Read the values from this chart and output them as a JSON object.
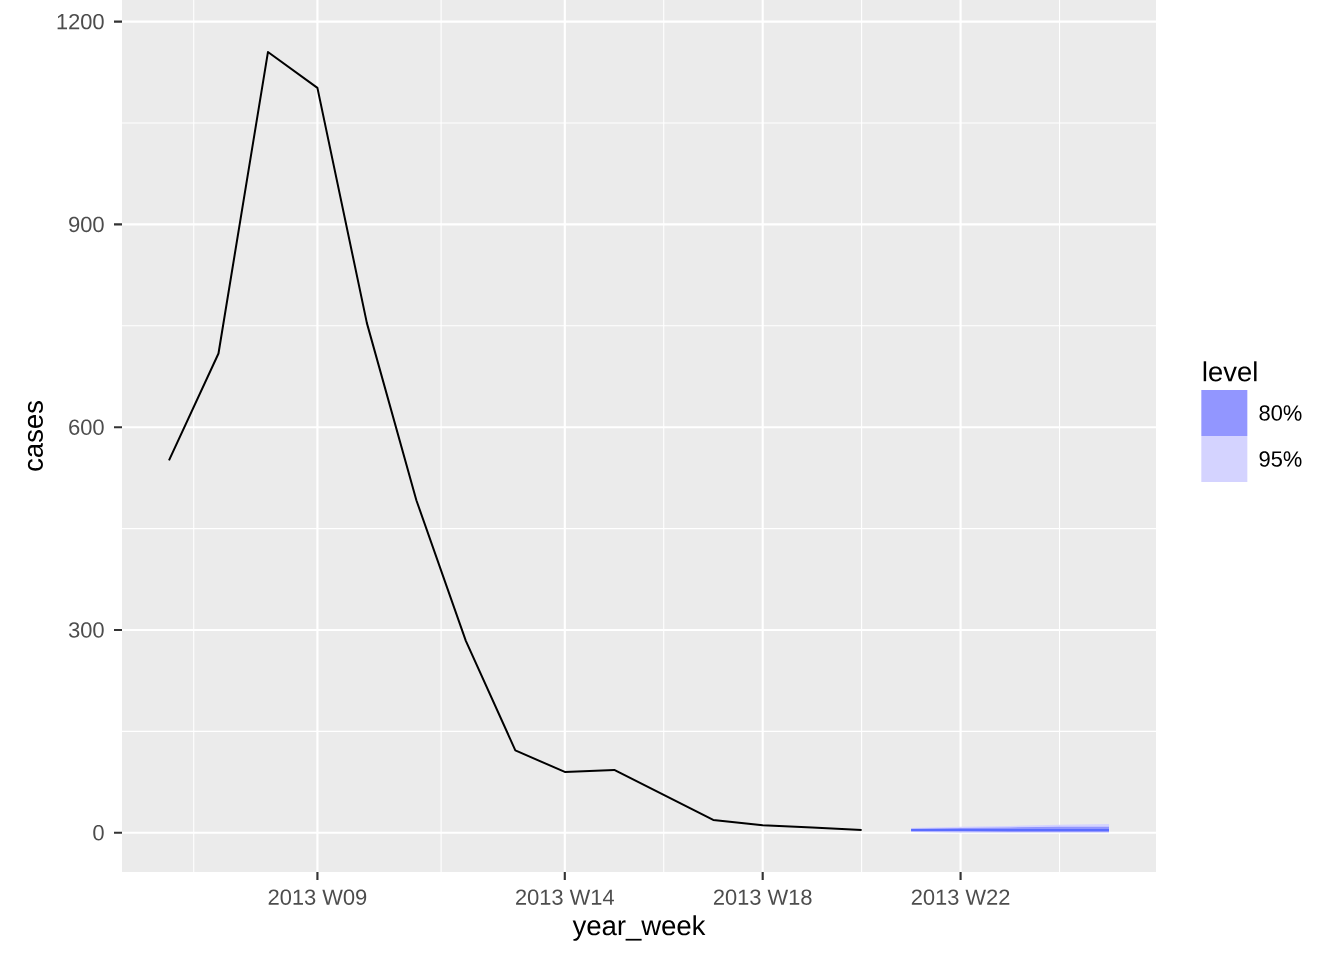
{
  "chart_data": {
    "type": "line",
    "xlabel": "year_week",
    "ylabel": "cases",
    "legend_title": "level",
    "legend": "right",
    "grid": true,
    "categories": [
      null,
      null,
      null,
      "2013 W09",
      null,
      null,
      null,
      null,
      "2013 W14",
      null,
      null,
      null,
      "2013 W18",
      null,
      null,
      null,
      "2013 W22",
      null,
      null,
      null
    ],
    "ylim": [
      -58,
      1232
    ],
    "yticks": [
      0,
      300,
      600,
      900,
      1200
    ],
    "series": [
      {
        "color": "#000000",
        "values": [
          551,
          709,
          1155,
          1102,
          754,
          492,
          284,
          122,
          90,
          93,
          56,
          19,
          11,
          8,
          4,
          null,
          null,
          null,
          null,
          null
        ]
      },
      {
        "name": "80%",
        "type": "area",
        "color": "#9296ff",
        "values": [
          null,
          null,
          null,
          null,
          null,
          null,
          null,
          null,
          null,
          null,
          null,
          null,
          null,
          null,
          null,
          null,
          null,
          null,
          null,
          null
        ],
        "lower": [
          null,
          null,
          null,
          null,
          null,
          null,
          null,
          null,
          null,
          null,
          null,
          null,
          null,
          null,
          null,
          2,
          2,
          1,
          1,
          1
        ],
        "upper": [
          null,
          null,
          null,
          null,
          null,
          null,
          null,
          null,
          null,
          null,
          null,
          null,
          null,
          null,
          null,
          6,
          7,
          8,
          9,
          9
        ]
      },
      {
        "name": "95%",
        "type": "area",
        "color": "#d4d3ff",
        "values": [
          null,
          null,
          null,
          null,
          null,
          null,
          null,
          null,
          null,
          null,
          null,
          null,
          null,
          null,
          null,
          null,
          null,
          null,
          null,
          null
        ],
        "lower": [
          null,
          null,
          null,
          null,
          null,
          null,
          null,
          null,
          null,
          null,
          null,
          null,
          null,
          null,
          null,
          1,
          0,
          0,
          0,
          0
        ],
        "upper": [
          null,
          null,
          null,
          null,
          null,
          null,
          null,
          null,
          null,
          null,
          null,
          null,
          null,
          null,
          null,
          7,
          9,
          10,
          12,
          13
        ]
      },
      {
        "color": "#5a6cff",
        "values": [
          null,
          null,
          null,
          null,
          null,
          null,
          null,
          null,
          null,
          null,
          null,
          null,
          null,
          null,
          null,
          4,
          4,
          4,
          4,
          4
        ]
      }
    ]
  }
}
